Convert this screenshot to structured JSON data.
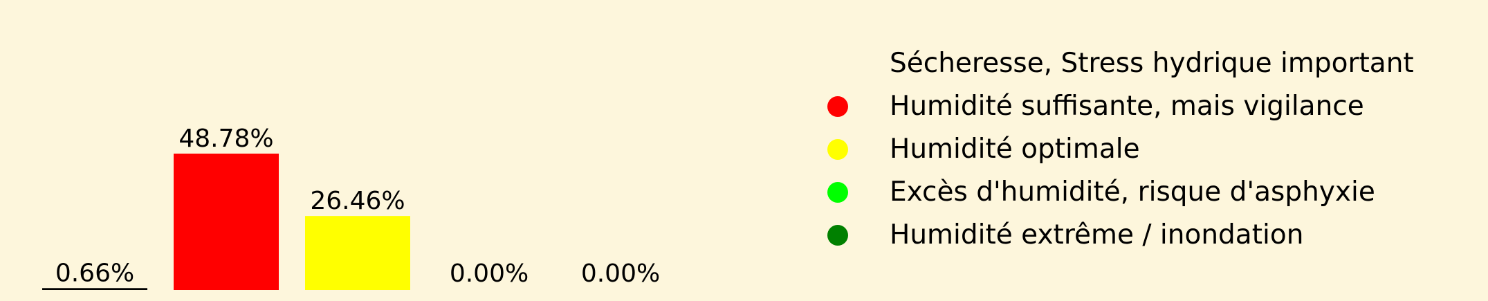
{
  "chart_data": {
    "type": "bar",
    "categories": [
      "Sécheresse, Stress hydrique important",
      "Humidité suffisante, mais vigilance",
      "Humidité optimale",
      "Excès d'humidité, risque d'asphyxie",
      "Humidité extrême / inondation"
    ],
    "values": [
      0.66,
      48.78,
      26.46,
      0.0,
      0.0
    ],
    "value_labels": [
      "0.66%",
      "48.78%",
      "26.46%",
      "0.00%",
      "0.00%"
    ],
    "colors": [
      "#000000",
      "#ff0000",
      "#ffff00",
      "#00ff00",
      "#008000"
    ],
    "ylim": [
      0,
      100
    ],
    "legend": {
      "placement": "right",
      "entries": [
        {
          "label": "Sécheresse, Stress hydrique important",
          "marker": "none"
        },
        {
          "label": "Humidité suffisante, mais vigilance",
          "color": "#ff0000"
        },
        {
          "label": "Humidité optimale",
          "color": "#ffff00"
        },
        {
          "label": "Excès d'humidité, risque d'asphyxie",
          "color": "#00ff00"
        },
        {
          "label": "Humidité extrême / inondation",
          "color": "#008000"
        }
      ]
    },
    "grid": false,
    "background": "#fdf6dc"
  }
}
